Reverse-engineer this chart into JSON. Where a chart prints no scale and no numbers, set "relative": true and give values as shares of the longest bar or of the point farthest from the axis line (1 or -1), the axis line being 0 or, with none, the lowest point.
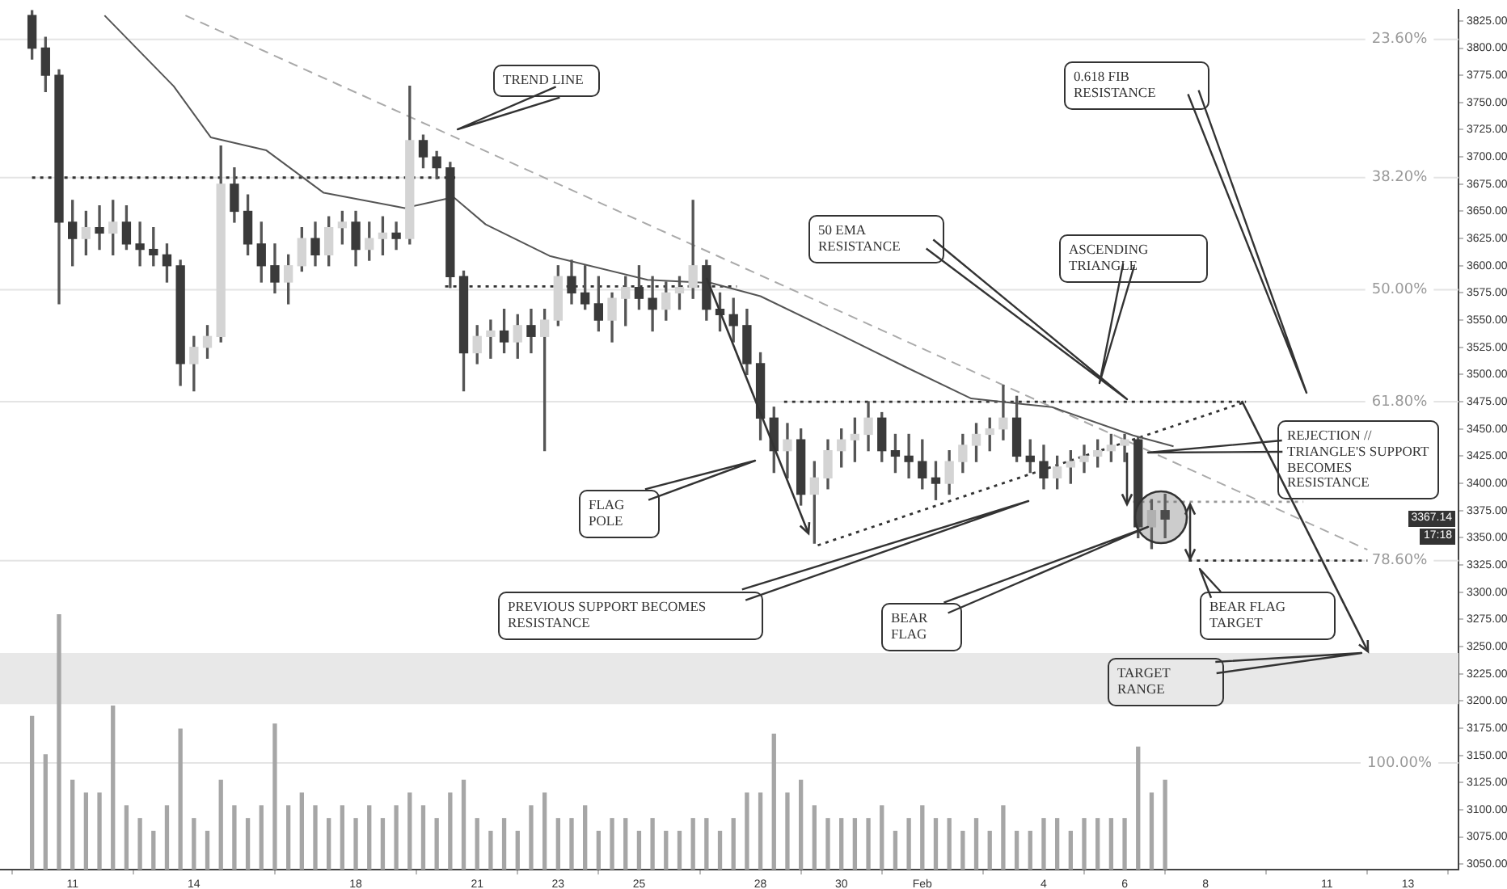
{
  "chart_data": [
    {
      "type": "candlestick",
      "x": [
        "--01-10T00:00",
        "--01-10T08:00",
        "--01-10T16:00",
        "--01-11T00:00",
        "--01-11T08:00",
        "--01-11T16:00",
        "--01-12T00:00",
        "--01-12T08:00",
        "--01-12T16:00",
        "--01-13T00:00",
        "--01-13T08:00",
        "--01-13T16:00",
        "--01-14T00:00",
        "--01-14T08:00",
        "--01-14T16:00",
        "--01-15T00:00",
        "--01-15T08:00",
        "--01-15T16:00",
        "--01-16T00:00",
        "--01-16T08:00",
        "--01-16T16:00",
        "--01-17T00:00",
        "--01-17T08:00",
        "--01-17T16:00",
        "--01-18T00:00",
        "--01-18T08:00",
        "--01-18T16:00",
        "--01-19T00:00",
        "--01-19T08:00",
        "--01-19T16:00",
        "--01-20T00:00",
        "--01-20T08:00",
        "--01-20T16:00",
        "--01-21T00:00",
        "--01-21T08:00",
        "--01-21T16:00",
        "--01-22T00:00",
        "--01-22T08:00",
        "--01-22T16:00",
        "--01-23T00:00",
        "--01-23T08:00",
        "--01-23T16:00",
        "--01-24T00:00",
        "--01-24T08:00",
        "--01-24T16:00",
        "--01-25T00:00",
        "--01-25T08:00",
        "--01-25T16:00",
        "--01-26T00:00",
        "--01-26T08:00",
        "--01-26T16:00",
        "--01-27T00:00",
        "--01-27T08:00",
        "--01-27T16:00",
        "--01-28T00:00",
        "--01-28T08:00",
        "--01-28T16:00",
        "--01-29T00:00",
        "--01-29T08:00",
        "--01-29T16:00",
        "--01-30T00:00",
        "--01-30T08:00",
        "--01-30T16:00",
        "--01-31T00:00",
        "--01-31T08:00",
        "--01-31T16:00",
        "--02-01T00:00",
        "--02-01T08:00",
        "--02-01T16:00",
        "--02-02T00:00",
        "--02-02T08:00",
        "--02-02T16:00",
        "--02-03T00:00",
        "--02-03T08:00",
        "--02-03T16:00",
        "--02-04T00:00",
        "--02-04T08:00",
        "--02-04T16:00",
        "--02-05T00:00",
        "--02-05T08:00",
        "--02-05T16:00",
        "--02-06T00:00",
        "--02-06T08:00",
        "--02-06T16:00",
        "--02-07T00:00"
      ],
      "ohlc": [
        [
          3830,
          3835,
          3790,
          3800
        ],
        [
          3800,
          3810,
          3760,
          3775
        ],
        [
          3775,
          3780,
          3565,
          3640
        ],
        [
          3640,
          3660,
          3600,
          3625
        ],
        [
          3625,
          3650,
          3610,
          3635
        ],
        [
          3635,
          3655,
          3615,
          3630
        ],
        [
          3630,
          3660,
          3610,
          3640
        ],
        [
          3640,
          3655,
          3615,
          3620
        ],
        [
          3620,
          3640,
          3600,
          3615
        ],
        [
          3615,
          3635,
          3600,
          3610
        ],
        [
          3610,
          3620,
          3585,
          3600
        ],
        [
          3600,
          3605,
          3490,
          3510
        ],
        [
          3510,
          3535,
          3485,
          3525
        ],
        [
          3525,
          3545,
          3515,
          3535
        ],
        [
          3535,
          3710,
          3530,
          3675
        ],
        [
          3675,
          3690,
          3640,
          3650
        ],
        [
          3650,
          3665,
          3610,
          3620
        ],
        [
          3620,
          3640,
          3585,
          3600
        ],
        [
          3600,
          3620,
          3575,
          3585
        ],
        [
          3585,
          3610,
          3565,
          3600
        ],
        [
          3600,
          3635,
          3595,
          3625
        ],
        [
          3625,
          3640,
          3600,
          3610
        ],
        [
          3610,
          3645,
          3600,
          3635
        ],
        [
          3635,
          3650,
          3620,
          3640
        ],
        [
          3640,
          3650,
          3600,
          3615
        ],
        [
          3615,
          3640,
          3605,
          3625
        ],
        [
          3625,
          3645,
          3610,
          3630
        ],
        [
          3630,
          3640,
          3615,
          3625
        ],
        [
          3625,
          3765,
          3620,
          3715
        ],
        [
          3715,
          3720,
          3690,
          3700
        ],
        [
          3700,
          3705,
          3680,
          3690
        ],
        [
          3690,
          3695,
          3580,
          3590
        ],
        [
          3590,
          3595,
          3485,
          3520
        ],
        [
          3520,
          3545,
          3510,
          3535
        ],
        [
          3535,
          3550,
          3515,
          3540
        ],
        [
          3540,
          3560,
          3520,
          3530
        ],
        [
          3530,
          3555,
          3515,
          3545
        ],
        [
          3545,
          3560,
          3520,
          3535
        ],
        [
          3535,
          3560,
          3430,
          3550
        ],
        [
          3550,
          3600,
          3545,
          3590
        ],
        [
          3590,
          3605,
          3565,
          3575
        ],
        [
          3575,
          3600,
          3560,
          3565
        ],
        [
          3565,
          3590,
          3540,
          3550
        ],
        [
          3550,
          3575,
          3530,
          3570
        ],
        [
          3570,
          3590,
          3545,
          3580
        ],
        [
          3580,
          3600,
          3560,
          3570
        ],
        [
          3570,
          3590,
          3540,
          3560
        ],
        [
          3560,
          3585,
          3550,
          3575
        ],
        [
          3575,
          3590,
          3560,
          3580
        ],
        [
          3580,
          3660,
          3570,
          3600
        ],
        [
          3600,
          3605,
          3550,
          3560
        ],
        [
          3560,
          3575,
          3540,
          3555
        ],
        [
          3555,
          3570,
          3530,
          3545
        ],
        [
          3545,
          3560,
          3500,
          3510
        ],
        [
          3510,
          3520,
          3440,
          3460
        ],
        [
          3460,
          3470,
          3410,
          3430
        ],
        [
          3430,
          3455,
          3405,
          3440
        ],
        [
          3440,
          3450,
          3380,
          3390
        ],
        [
          3390,
          3420,
          3345,
          3405
        ],
        [
          3405,
          3440,
          3395,
          3430
        ],
        [
          3430,
          3450,
          3415,
          3440
        ],
        [
          3440,
          3460,
          3420,
          3445
        ],
        [
          3445,
          3475,
          3430,
          3460
        ],
        [
          3460,
          3465,
          3420,
          3430
        ],
        [
          3430,
          3445,
          3410,
          3425
        ],
        [
          3425,
          3445,
          3405,
          3420
        ],
        [
          3420,
          3440,
          3395,
          3405
        ],
        [
          3405,
          3420,
          3385,
          3400
        ],
        [
          3400,
          3430,
          3390,
          3420
        ],
        [
          3420,
          3445,
          3410,
          3435
        ],
        [
          3435,
          3455,
          3420,
          3445
        ],
        [
          3445,
          3460,
          3430,
          3450
        ],
        [
          3450,
          3490,
          3440,
          3460
        ],
        [
          3460,
          3480,
          3420,
          3425
        ],
        [
          3425,
          3440,
          3410,
          3420
        ],
        [
          3420,
          3435,
          3395,
          3405
        ],
        [
          3405,
          3425,
          3395,
          3415
        ],
        [
          3415,
          3430,
          3400,
          3420
        ],
        [
          3420,
          3435,
          3410,
          3425
        ],
        [
          3425,
          3440,
          3415,
          3430
        ],
        [
          3430,
          3445,
          3420,
          3435
        ],
        [
          3435,
          3445,
          3420,
          3440
        ],
        [
          3440,
          3442,
          3350,
          3360
        ],
        [
          3360,
          3385,
          3340,
          3375
        ],
        [
          3375,
          3390,
          3350,
          3367.14
        ]
      ],
      "series": [
        {
          "type": "line",
          "color": "#555555",
          "line_style": "solid",
          "x": [
            "--01-11T19:00",
            "--01-13T12:00",
            "--01-14T10:00",
            "--01-15T19:00",
            "--01-17T05:00",
            "--01-19T05:00",
            "--01-20T10:00",
            "--01-21T05:00",
            "--01-22T19:00",
            "--01-25T05:00",
            "--01-26T19:00",
            "--01-28T00:00",
            "--01-30T00:00",
            "--01-31T14:00",
            "--02-02T05:00",
            "--02-04T05:00",
            "--02-06T05:00",
            "--02-07T05:00"
          ],
          "values": [
            3830,
            3765,
            3718,
            3706,
            3667,
            3653,
            3663,
            3638,
            3609,
            3587,
            3584,
            3572,
            3536,
            3507,
            3478,
            3470,
            3444,
            3434
          ]
        },
        {
          "type": "line",
          "color": "#aaaaaa",
          "line_style": "dashed",
          "x": [
            "--01-13T19:00",
            "--02-12T00:00"
          ],
          "values": [
            3830,
            3339
          ]
        },
        {
          "type": "line",
          "color": "#333333",
          "line_style": "dotted",
          "x": [
            "--01-10T00:00",
            "--01-20T11:00"
          ],
          "values": [
            3681,
            3681
          ]
        },
        {
          "type": "line",
          "color": "#333333",
          "line_style": "dotted",
          "x": [
            "--01-20T05:00",
            "--01-27T10:00"
          ],
          "values": [
            3581,
            3581
          ]
        },
        {
          "type": "line",
          "color": "#333333",
          "line_style": "dotted",
          "x": [
            "--01-28T14:00",
            "--02-09T00:00"
          ],
          "values": [
            3475,
            3475
          ]
        },
        {
          "type": "line",
          "color": "#333333",
          "line_style": "dotted",
          "x": [
            "--01-29T10:00",
            "--02-09T00:00"
          ],
          "values": [
            3343,
            3475
          ]
        },
        {
          "type": "line",
          "color": "#999999",
          "line_style": "dotted",
          "x": [
            "--02-06T05:00",
            "--02-10T10:00"
          ],
          "values": [
            3383,
            3383
          ]
        },
        {
          "type": "line",
          "color": "#333333",
          "line_style": "dotted",
          "x": [
            "--02-07T14:00",
            "--02-12T00:00"
          ],
          "values": [
            3329,
            3329
          ]
        }
      ],
      "xlim": [
        "--01-09T05:00",
        "--02-14T06:00"
      ],
      "xticks": [
        {
          "value": "--01-11",
          "label": "11"
        },
        {
          "value": "--01-14",
          "label": "14"
        },
        {
          "value": "--01-18",
          "label": "18"
        },
        {
          "value": "--01-21",
          "label": "21"
        },
        {
          "value": "--01-23",
          "label": "23"
        },
        {
          "value": "--01-25",
          "label": "25"
        },
        {
          "value": "--01-28",
          "label": "28"
        },
        {
          "value": "--01-30",
          "label": "30"
        },
        {
          "value": "--02-01",
          "label": "Feb"
        },
        {
          "value": "--02-04",
          "label": "4"
        },
        {
          "value": "--02-06",
          "label": "6"
        },
        {
          "value": "--02-08",
          "label": "8"
        },
        {
          "value": "--02-11",
          "label": "11"
        },
        {
          "value": "--02-13",
          "label": "13"
        }
      ],
      "ylim": [
        3045,
        3835
      ],
      "yticks": [
        {
          "value": 3050,
          "label": "3050.00"
        },
        {
          "value": 3075,
          "label": "3075.00"
        },
        {
          "value": 3100,
          "label": "3100.00"
        },
        {
          "value": 3125,
          "label": "3125.00"
        },
        {
          "value": 3150,
          "label": "3150.00"
        },
        {
          "value": 3175,
          "label": "3175.00"
        },
        {
          "value": 3200,
          "label": "3200.00"
        },
        {
          "value": 3225,
          "label": "3225.00"
        },
        {
          "value": 3250,
          "label": "3250.00"
        },
        {
          "value": 3275,
          "label": "3275.00"
        },
        {
          "value": 3300,
          "label": "3300.00"
        },
        {
          "value": 3325,
          "label": "3325.00"
        },
        {
          "value": 3350,
          "label": "3350.00"
        },
        {
          "value": 3375,
          "label": "3375.00"
        },
        {
          "value": 3400,
          "label": "3400.00"
        },
        {
          "value": 3425,
          "label": "3425.00"
        },
        {
          "value": 3450,
          "label": "3450.00"
        },
        {
          "value": 3475,
          "label": "3475.00"
        },
        {
          "value": 3500,
          "label": "3500.00"
        },
        {
          "value": 3525,
          "label": "3525.00"
        },
        {
          "value": 3550,
          "label": "3550.00"
        },
        {
          "value": 3575,
          "label": "3575.00"
        },
        {
          "value": 3600,
          "label": "3600.00"
        },
        {
          "value": 3625,
          "label": "3625.00"
        },
        {
          "value": 3650,
          "label": "3650.00"
        },
        {
          "value": 3675,
          "label": "3675.00"
        },
        {
          "value": 3700,
          "label": "3700.00"
        },
        {
          "value": 3725,
          "label": "3725.00"
        },
        {
          "value": 3750,
          "label": "3750.00"
        },
        {
          "value": 3775,
          "label": "3775.00"
        },
        {
          "value": 3800,
          "label": "3800.00"
        },
        {
          "value": 3825,
          "label": "3825.00"
        }
      ],
      "ref_lines": [
        {
          "axis": "y",
          "value": 3808,
          "color": "#e4e4e4"
        },
        {
          "axis": "y",
          "value": 3681,
          "color": "#e4e4e4"
        },
        {
          "axis": "y",
          "value": 3578,
          "color": "#e4e4e4"
        },
        {
          "axis": "y",
          "value": 3475,
          "color": "#e4e4e4"
        },
        {
          "axis": "y",
          "value": 3329,
          "color": "#e4e4e4"
        },
        {
          "axis": "y",
          "value": 3143,
          "color": "#e4e4e4"
        }
      ],
      "bands": [
        {
          "axis": "y",
          "from": 3197,
          "to": 3244,
          "color": "#e8e8e8"
        }
      ],
      "annotations": [
        "TREND LINE",
        "0.618 FIB RESISTANCE",
        "50 EMA RESISTANCE",
        "ASCENDING TRIANGLE",
        "REJECTION // TRIANGLE'S SUPPORT BECOMES RESISTANCE",
        "FLAG POLE",
        "PREVIOUS SUPPORT BECOMES RESISTANCE",
        "BEAR FLAG",
        "BEAR FLAG TARGET",
        "TARGET RANGE",
        "3367.14",
        "17:18",
        {
          "text": "23.60%",
          "x": "--02-12T19:00",
          "y": 3808
        },
        {
          "text": "38.20%",
          "x": "--02-12T19:00",
          "y": 3681
        },
        {
          "text": "50.00%",
          "x": "--02-12T19:00",
          "y": 3578
        },
        {
          "text": "61.80%",
          "x": "--02-12T19:00",
          "y": 3475
        },
        {
          "text": "78.60%",
          "x": "--02-12T19:00",
          "y": 3329
        },
        {
          "text": "100.00%",
          "x": "--02-12T19:00",
          "y": 3143
        }
      ]
    },
    {
      "type": "bar",
      "relative": true,
      "tick_labels": false,
      "color": "#a6a6a6",
      "x": [
        "--01-10T00:00",
        "--01-10T08:00",
        "--01-10T16:00",
        "--01-11T00:00",
        "--01-11T08:00",
        "--01-11T16:00",
        "--01-12T00:00",
        "--01-12T08:00",
        "--01-12T16:00",
        "--01-13T00:00",
        "--01-13T08:00",
        "--01-13T16:00",
        "--01-14T00:00",
        "--01-14T08:00",
        "--01-14T16:00",
        "--01-15T00:00",
        "--01-15T08:00",
        "--01-15T16:00",
        "--01-16T00:00",
        "--01-16T08:00",
        "--01-16T16:00",
        "--01-17T00:00",
        "--01-17T08:00",
        "--01-17T16:00",
        "--01-18T00:00",
        "--01-18T08:00",
        "--01-18T16:00",
        "--01-19T00:00",
        "--01-19T08:00",
        "--01-19T16:00",
        "--01-20T00:00",
        "--01-20T08:00",
        "--01-20T16:00",
        "--01-21T00:00",
        "--01-21T08:00",
        "--01-21T16:00",
        "--01-22T00:00",
        "--01-22T08:00",
        "--01-22T16:00",
        "--01-23T00:00",
        "--01-23T08:00",
        "--01-23T16:00",
        "--01-24T00:00",
        "--01-24T08:00",
        "--01-24T16:00",
        "--01-25T00:00",
        "--01-25T08:00",
        "--01-25T16:00",
        "--01-26T00:00",
        "--01-26T08:00",
        "--01-26T16:00",
        "--01-27T00:00",
        "--01-27T08:00",
        "--01-27T16:00",
        "--01-28T00:00",
        "--01-28T08:00",
        "--01-28T16:00",
        "--01-29T00:00",
        "--01-29T08:00",
        "--01-29T16:00",
        "--01-30T00:00",
        "--01-30T08:00",
        "--01-30T16:00",
        "--01-31T00:00",
        "--01-31T08:00",
        "--01-31T16:00",
        "--02-01T00:00",
        "--02-01T08:00",
        "--02-01T16:00",
        "--02-02T00:00",
        "--02-02T08:00",
        "--02-02T16:00",
        "--02-03T00:00",
        "--02-03T08:00",
        "--02-03T16:00",
        "--02-04T00:00",
        "--02-04T08:00",
        "--02-04T16:00",
        "--02-05T00:00",
        "--02-05T08:00",
        "--02-05T16:00",
        "--02-06T00:00",
        "--02-06T08:00",
        "--02-06T16:00",
        "--02-07T00:00"
      ],
      "values": [
        0.6,
        0.45,
        1,
        0.35,
        0.3,
        0.3,
        0.64,
        0.25,
        0.2,
        0.15,
        0.25,
        0.55,
        0.2,
        0.15,
        0.35,
        0.25,
        0.2,
        0.25,
        0.57,
        0.25,
        0.3,
        0.25,
        0.2,
        0.25,
        0.2,
        0.25,
        0.2,
        0.25,
        0.3,
        0.25,
        0.2,
        0.3,
        0.35,
        0.2,
        0.15,
        0.2,
        0.15,
        0.25,
        0.3,
        0.2,
        0.2,
        0.25,
        0.15,
        0.2,
        0.2,
        0.15,
        0.2,
        0.15,
        0.15,
        0.2,
        0.2,
        0.15,
        0.2,
        0.3,
        0.3,
        0.53,
        0.3,
        0.35,
        0.25,
        0.2,
        0.2,
        0.2,
        0.2,
        0.25,
        0.15,
        0.2,
        0.25,
        0.2,
        0.2,
        0.15,
        0.2,
        0.15,
        0.25,
        0.15,
        0.15,
        0.2,
        0.2,
        0.15,
        0.2,
        0.2,
        0.2,
        0.2,
        0.48,
        0.3,
        0.35
      ],
      "xlim": [
        "--01-09T05:00",
        "--02-14T06:00"
      ]
    }
  ]
}
